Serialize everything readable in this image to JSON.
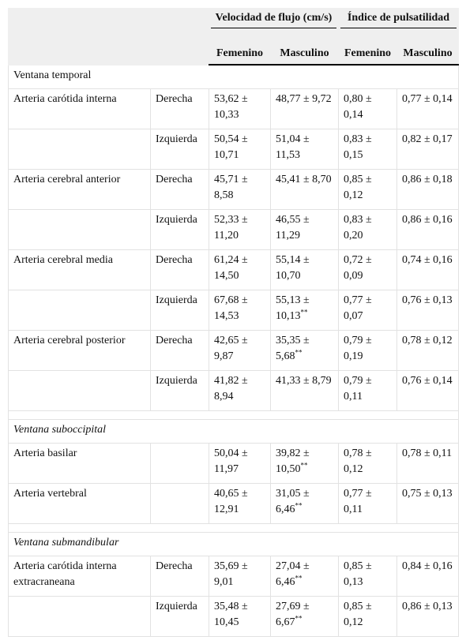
{
  "table": {
    "groups": [
      "Velocidad de flujo (cm/s)",
      "Índice de pulsatilidad"
    ],
    "subcolumns": [
      "Femenino",
      "Masculino",
      "Femenino",
      "Masculino"
    ],
    "sections": [
      {
        "title": "Ventana temporal",
        "italic": false,
        "rows": [
          {
            "artery": "Arteria carótida interna",
            "side": "Derecha",
            "cells": [
              {
                "value": "53,62 ± 10,33"
              },
              {
                "value": "48,77 ± 9,72"
              },
              {
                "value": "0,80 ± 0,14"
              },
              {
                "value": "0,77 ± 0,14"
              }
            ]
          },
          {
            "artery": null,
            "side": "Izquierda",
            "cells": [
              {
                "value": "50,54 ± 10,71"
              },
              {
                "value": "51,04 ± 11,53"
              },
              {
                "value": "0,83 ± 0,15"
              },
              {
                "value": "0,82 ± 0,17"
              }
            ]
          },
          {
            "artery": "Arteria cerebral anterior",
            "side": "Derecha",
            "cells": [
              {
                "value": "45,71 ± 8,58"
              },
              {
                "value": "45,41 ± 8,70"
              },
              {
                "value": "0,85 ± 0,12"
              },
              {
                "value": "0,86 ± 0,18"
              }
            ]
          },
          {
            "artery": null,
            "side": "Izquierda",
            "cells": [
              {
                "value": "52,33 ± 11,20"
              },
              {
                "value": "46,55 ± 11,29"
              },
              {
                "value": "0,83 ± 0,20"
              },
              {
                "value": "0,86 ± 0,16"
              }
            ]
          },
          {
            "artery": "Arteria cerebral media",
            "side": "Derecha",
            "cells": [
              {
                "value": "61,24 ± 14,50"
              },
              {
                "value": "55,14 ± 10,70"
              },
              {
                "value": "0,72 ± 0,09"
              },
              {
                "value": "0,74 ± 0,16"
              }
            ]
          },
          {
            "artery": null,
            "side": "Izquierda",
            "cells": [
              {
                "value": "67,68 ± 14,53"
              },
              {
                "value": "55,13 ± 10,13",
                "note": "**"
              },
              {
                "value": "0,77 ± 0,07"
              },
              {
                "value": "0,76 ± 0,13"
              }
            ]
          },
          {
            "artery": "Arteria cerebral posterior",
            "side": "Derecha",
            "cells": [
              {
                "value": "42,65 ± 9,87"
              },
              {
                "value": "35,35 ± 5,68",
                "note": "**"
              },
              {
                "value": "0,79 ± 0,19"
              },
              {
                "value": "0,78 ± 0,12"
              }
            ]
          },
          {
            "artery": null,
            "side": "Izquierda",
            "cells": [
              {
                "value": "41,82 ± 8,94"
              },
              {
                "value": "41,33 ± 8,79"
              },
              {
                "value": "0,79 ± 0,11"
              },
              {
                "value": "0,76 ± 0,14"
              }
            ]
          }
        ]
      },
      {
        "title": "Ventana suboccipital",
        "italic": true,
        "rows": [
          {
            "artery": "Arteria basilar",
            "side": null,
            "cells": [
              {
                "value": "50,04 ± 11,97"
              },
              {
                "value": "39,82 ± 10,50",
                "note": "**"
              },
              {
                "value": "0,78 ± 0,12"
              },
              {
                "value": "0,78 ± 0,11"
              }
            ]
          },
          {
            "artery": "Arteria vertebral",
            "side": null,
            "cells": [
              {
                "value": "40,65 ± 12,91"
              },
              {
                "value": "31,05 ± 6,46",
                "note": "**"
              },
              {
                "value": "0,77 ± 0,11"
              },
              {
                "value": "0,75 ± 0,13"
              }
            ]
          }
        ]
      },
      {
        "title": "Ventana submandibular",
        "italic": true,
        "rows": [
          {
            "artery": "Arteria carótida interna extracraneana",
            "side": "Derecha",
            "cells": [
              {
                "value": "35,69 ± 9,01"
              },
              {
                "value": "27,04 ± 6,46",
                "note": "**"
              },
              {
                "value": "0,85 ± 0,13"
              },
              {
                "value": "0,84 ± 0,16"
              }
            ]
          },
          {
            "artery": null,
            "side": "Izquierda",
            "cells": [
              {
                "value": "35,48 ± 10,45"
              },
              {
                "value": "27,69 ± 6,67",
                "note": "**"
              },
              {
                "value": "0,85 ± 0,12"
              },
              {
                "value": "0,86 ± 0,13"
              }
            ]
          }
        ]
      }
    ]
  }
}
